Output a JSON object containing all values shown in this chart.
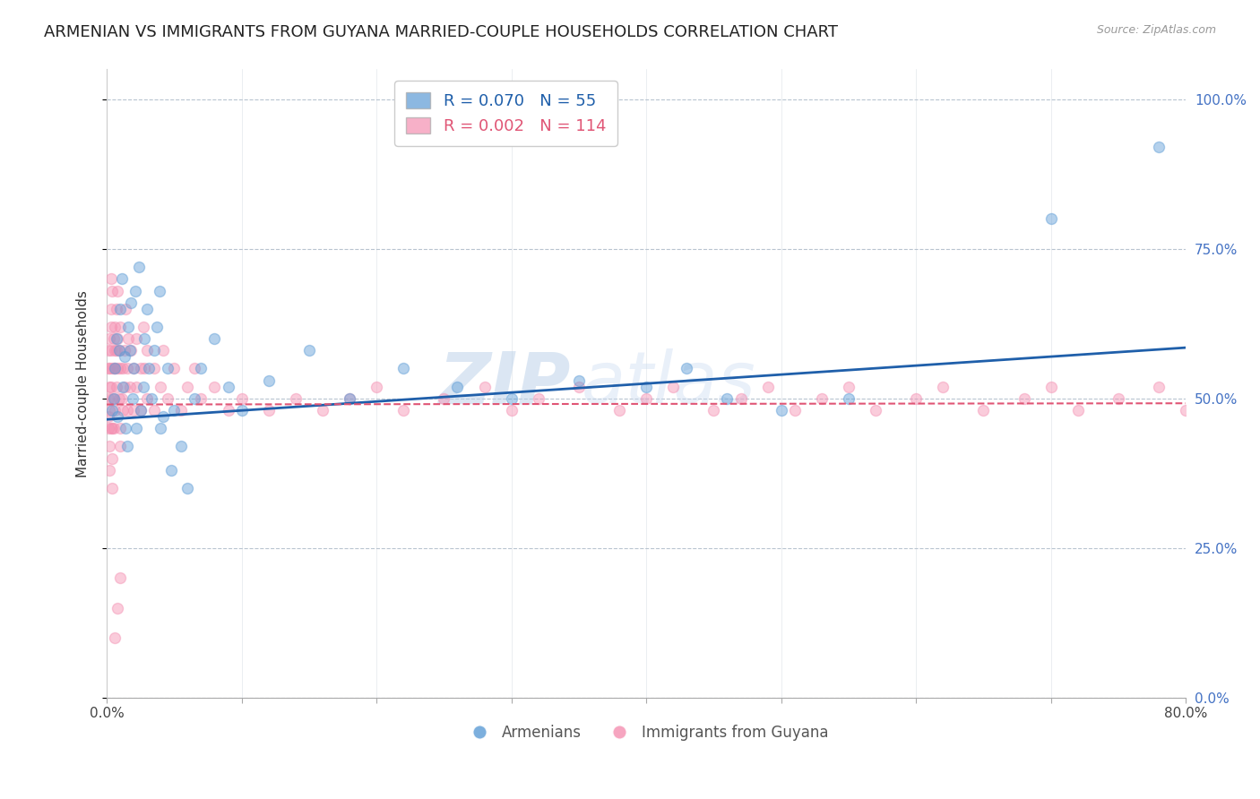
{
  "title": "ARMENIAN VS IMMIGRANTS FROM GUYANA MARRIED-COUPLE HOUSEHOLDS CORRELATION CHART",
  "source": "Source: ZipAtlas.com",
  "ylabel": "Married-couple Households",
  "legend_label_armenians": "Armenians",
  "legend_label_guyana": "Immigrants from Guyana",
  "blue_color": "#5b9bd5",
  "pink_color": "#f48fb1",
  "trend_blue": "#1f5faa",
  "trend_pink": "#e05575",
  "watermark_zip": "ZIP",
  "watermark_atlas": "atlas",
  "ytick_values": [
    0.0,
    0.25,
    0.5,
    0.75,
    1.0
  ],
  "xmin": 0.0,
  "xmax": 0.8,
  "ymin": 0.0,
  "ymax": 1.05,
  "blue_scatter_x": [
    0.004,
    0.005,
    0.006,
    0.007,
    0.008,
    0.009,
    0.01,
    0.011,
    0.012,
    0.013,
    0.014,
    0.015,
    0.016,
    0.017,
    0.018,
    0.019,
    0.02,
    0.021,
    0.022,
    0.024,
    0.025,
    0.027,
    0.028,
    0.03,
    0.031,
    0.033,
    0.035,
    0.037,
    0.039,
    0.04,
    0.042,
    0.045,
    0.048,
    0.05,
    0.055,
    0.06,
    0.065,
    0.07,
    0.08,
    0.09,
    0.1,
    0.12,
    0.15,
    0.18,
    0.22,
    0.26,
    0.3,
    0.35,
    0.4,
    0.43,
    0.46,
    0.5,
    0.55,
    0.7,
    0.78
  ],
  "blue_scatter_y": [
    0.48,
    0.5,
    0.55,
    0.6,
    0.47,
    0.58,
    0.65,
    0.7,
    0.52,
    0.57,
    0.45,
    0.42,
    0.62,
    0.58,
    0.66,
    0.5,
    0.55,
    0.68,
    0.45,
    0.72,
    0.48,
    0.52,
    0.6,
    0.65,
    0.55,
    0.5,
    0.58,
    0.62,
    0.68,
    0.45,
    0.47,
    0.55,
    0.38,
    0.48,
    0.42,
    0.35,
    0.5,
    0.55,
    0.6,
    0.52,
    0.48,
    0.53,
    0.58,
    0.5,
    0.55,
    0.52,
    0.5,
    0.53,
    0.52,
    0.55,
    0.5,
    0.48,
    0.5,
    0.8,
    0.92
  ],
  "pink_scatter_x": [
    0.001,
    0.001,
    0.001,
    0.001,
    0.001,
    0.002,
    0.002,
    0.002,
    0.002,
    0.002,
    0.002,
    0.003,
    0.003,
    0.003,
    0.003,
    0.003,
    0.003,
    0.004,
    0.004,
    0.004,
    0.004,
    0.004,
    0.004,
    0.005,
    0.005,
    0.005,
    0.005,
    0.006,
    0.006,
    0.006,
    0.006,
    0.007,
    0.007,
    0.007,
    0.008,
    0.008,
    0.008,
    0.009,
    0.009,
    0.01,
    0.01,
    0.01,
    0.01,
    0.011,
    0.012,
    0.012,
    0.013,
    0.013,
    0.014,
    0.015,
    0.015,
    0.016,
    0.017,
    0.018,
    0.02,
    0.02,
    0.022,
    0.022,
    0.025,
    0.025,
    0.027,
    0.028,
    0.03,
    0.03,
    0.035,
    0.035,
    0.04,
    0.042,
    0.045,
    0.05,
    0.055,
    0.06,
    0.065,
    0.07,
    0.08,
    0.09,
    0.1,
    0.12,
    0.14,
    0.16,
    0.18,
    0.2,
    0.22,
    0.25,
    0.28,
    0.3,
    0.32,
    0.35,
    0.38,
    0.4,
    0.42,
    0.45,
    0.47,
    0.49,
    0.51,
    0.53,
    0.55,
    0.57,
    0.6,
    0.62,
    0.65,
    0.68,
    0.7,
    0.72,
    0.75,
    0.78,
    0.8,
    0.01,
    0.008,
    0.006
  ],
  "pink_scatter_y": [
    0.47,
    0.5,
    0.55,
    0.58,
    0.45,
    0.48,
    0.52,
    0.55,
    0.42,
    0.38,
    0.6,
    0.62,
    0.65,
    0.58,
    0.52,
    0.45,
    0.7,
    0.68,
    0.55,
    0.5,
    0.45,
    0.4,
    0.35,
    0.6,
    0.55,
    0.5,
    0.45,
    0.62,
    0.58,
    0.55,
    0.48,
    0.65,
    0.58,
    0.52,
    0.68,
    0.6,
    0.55,
    0.58,
    0.5,
    0.62,
    0.55,
    0.45,
    0.42,
    0.5,
    0.55,
    0.48,
    0.58,
    0.52,
    0.65,
    0.55,
    0.48,
    0.6,
    0.52,
    0.58,
    0.55,
    0.48,
    0.6,
    0.52,
    0.55,
    0.48,
    0.62,
    0.55,
    0.58,
    0.5,
    0.55,
    0.48,
    0.52,
    0.58,
    0.5,
    0.55,
    0.48,
    0.52,
    0.55,
    0.5,
    0.52,
    0.48,
    0.5,
    0.48,
    0.5,
    0.48,
    0.5,
    0.52,
    0.48,
    0.5,
    0.52,
    0.48,
    0.5,
    0.52,
    0.48,
    0.5,
    0.52,
    0.48,
    0.5,
    0.52,
    0.48,
    0.5,
    0.52,
    0.48,
    0.5,
    0.52,
    0.48,
    0.5,
    0.52,
    0.48,
    0.5,
    0.52,
    0.48,
    0.2,
    0.15,
    0.1
  ],
  "blue_trend_x": [
    0.0,
    0.8
  ],
  "blue_trend_y": [
    0.465,
    0.585
  ],
  "pink_trend_x": [
    0.0,
    0.8
  ],
  "pink_trend_y": [
    0.49,
    0.492
  ],
  "right_axis_color": "#4472c4",
  "grid_color": "#b8c4d0",
  "title_fontsize": 13,
  "axis_label_fontsize": 11,
  "tick_fontsize": 11,
  "scatter_size": 75,
  "scatter_alpha": 0.45,
  "scatter_linewidth": 1.0
}
